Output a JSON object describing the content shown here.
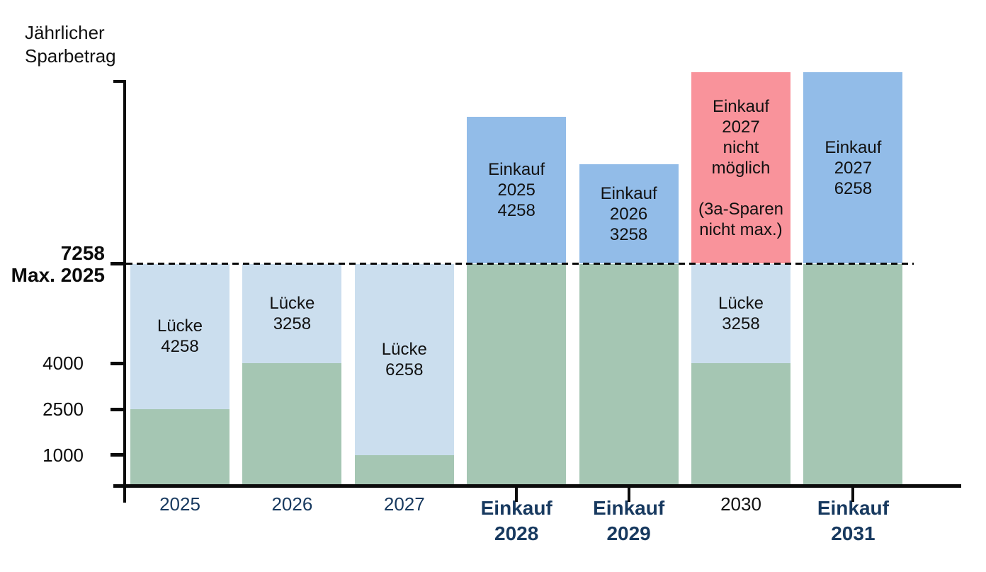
{
  "chart_data": {
    "type": "bar",
    "stacked": true,
    "title": "Jährlicher Sparbetrag",
    "axis_title": "Jährlicher\nSparbetrag",
    "xlabel": "",
    "ylabel": "Jährlicher Sparbetrag",
    "ylim": [
      0,
      13516
    ],
    "grid": false,
    "legend": "none",
    "y_axis": {
      "ticks": [
        {
          "value": 7258,
          "label": "7258\nMax. 2025",
          "bold": true
        },
        {
          "value": 4000,
          "label": "4000",
          "bold": false
        },
        {
          "value": 2500,
          "label": "2500",
          "bold": false
        },
        {
          "value": 1000,
          "label": "1000",
          "bold": false
        }
      ],
      "dashed_line_value": 7258
    },
    "colors": {
      "green": "#a5c6b3",
      "lightblue": "#cbdeee",
      "blue": "#92bce8",
      "red": "#f9939b",
      "axis": "#0b0b0b",
      "navy": "#17395f",
      "label_text": "#111111"
    },
    "bars": [
      {
        "axis_label": "2025",
        "axis_style": "navy",
        "tick": false,
        "segments": [
          {
            "color": "green",
            "from": 0,
            "to": 2500
          },
          {
            "color": "lightblue",
            "from": 2500,
            "to": 7258,
            "label": "Lücke\n4258"
          }
        ]
      },
      {
        "axis_label": "2026",
        "axis_style": "navy",
        "tick": false,
        "segments": [
          {
            "color": "green",
            "from": 0,
            "to": 4000
          },
          {
            "color": "lightblue",
            "from": 4000,
            "to": 7258,
            "label": "Lücke\n3258"
          }
        ]
      },
      {
        "axis_label": "2027",
        "axis_style": "navy",
        "tick": false,
        "segments": [
          {
            "color": "green",
            "from": 0,
            "to": 1000
          },
          {
            "color": "lightblue",
            "from": 1000,
            "to": 7258,
            "label": "Lücke\n6258"
          }
        ]
      },
      {
        "axis_label": "Einkauf\n2028",
        "axis_style": "navy-bold",
        "tick": true,
        "segments": [
          {
            "color": "green",
            "from": 0,
            "to": 7258
          },
          {
            "color": "blue",
            "from": 7258,
            "to": 11516,
            "display_to": 12060,
            "label": "Einkauf\n2025\n4258"
          }
        ]
      },
      {
        "axis_label": "Einkauf\n2029",
        "axis_style": "navy-bold",
        "tick": true,
        "segments": [
          {
            "color": "green",
            "from": 0,
            "to": 7258
          },
          {
            "color": "blue",
            "from": 7258,
            "to": 10516,
            "label": "Einkauf\n2026\n3258"
          }
        ]
      },
      {
        "axis_label": "2030",
        "axis_style": "black",
        "tick": false,
        "segments": [
          {
            "color": "green",
            "from": 0,
            "to": 4000
          },
          {
            "color": "lightblue",
            "from": 4000,
            "to": 7258,
            "label": "Lücke\n3258"
          },
          {
            "color": "red",
            "from": 7258,
            "to": 13516,
            "label": "Einkauf\n2027\nnicht\nmöglich\n\n(3a-Sparen\nnicht max.)"
          }
        ]
      },
      {
        "axis_label": "Einkauf\n2031",
        "axis_style": "navy-bold",
        "tick": true,
        "segments": [
          {
            "color": "green",
            "from": 0,
            "to": 7258
          },
          {
            "color": "blue",
            "from": 7258,
            "to": 13516,
            "label": "Einkauf\n2027\n6258"
          }
        ]
      }
    ]
  }
}
